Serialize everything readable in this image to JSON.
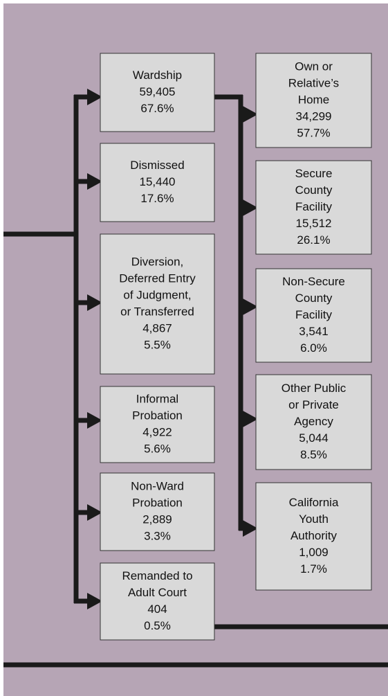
{
  "nodes": [
    {
      "lines": [
        "Wardship",
        "59,405",
        "67.6%"
      ]
    },
    {
      "lines": [
        "Dismissed",
        "15,440",
        "17.6%"
      ]
    },
    {
      "lines": [
        "Diversion,",
        "Deferred Entry",
        "of Judgment,",
        "or Transferred",
        "4,867",
        "5.5%"
      ]
    },
    {
      "lines": [
        "Informal",
        "Probation",
        "4,922",
        "5.6%"
      ]
    },
    {
      "lines": [
        "Non-Ward",
        "Probation",
        "2,889",
        "3.3%"
      ]
    },
    {
      "lines": [
        "Remanded to",
        "Adult Court",
        "404",
        "0.5%"
      ]
    },
    {
      "lines": [
        "Own or",
        "Relative’s",
        "Home",
        "34,299",
        "57.7%"
      ]
    },
    {
      "lines": [
        "Secure",
        "County",
        "Facility",
        "15,512",
        "26.1%"
      ]
    },
    {
      "lines": [
        "Non-Secure",
        "County",
        "Facility",
        "3,541",
        "6.0%"
      ]
    },
    {
      "lines": [
        "Other Public",
        "or Private",
        "Agency",
        "5,044",
        "8.5%"
      ]
    },
    {
      "lines": [
        "California",
        "Youth",
        "Authority",
        "1,009",
        "1.7%"
      ]
    }
  ]
}
